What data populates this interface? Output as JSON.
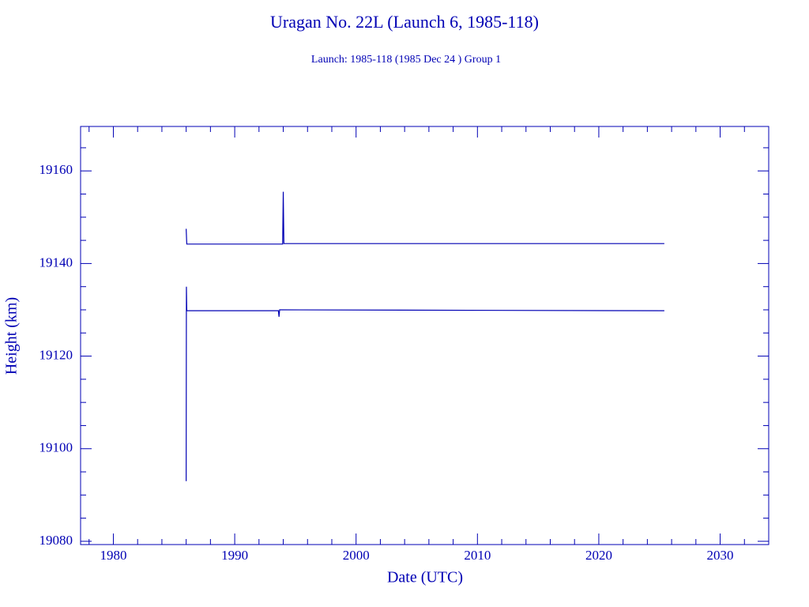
{
  "chart_data": {
    "type": "line",
    "title": "Uragan No. 22L (Launch 6, 1985-118)",
    "subtitle": "Launch: 1985-118  (1985 Dec 24 )  Group 1",
    "x_label": "Date (UTC)",
    "y_label": "Height (km)",
    "xlim": [
      1977.3,
      2034.0
    ],
    "ylim": [
      19079.3,
      19169.6
    ],
    "xticks": [
      1980,
      1990,
      2000,
      2010,
      2020,
      2030
    ],
    "yticks": [
      19080,
      19100,
      19120,
      19140,
      19160
    ],
    "xminorticks": [
      1978,
      1982,
      1984,
      1986,
      1988,
      1992,
      1994,
      1996,
      1998,
      2002,
      2004,
      2006,
      2008,
      2012,
      2014,
      2016,
      2018,
      2022,
      2024,
      2026,
      2028,
      2032
    ],
    "yminorticks": [
      19085,
      19090,
      19095,
      19105,
      19110,
      19115,
      19125,
      19130,
      19135,
      19145,
      19150,
      19155,
      19165
    ],
    "grid": false,
    "series": [
      {
        "color": "#0000b4",
        "x": [
          1986.0,
          1986.05,
          1993.95,
          1994.0,
          1994.05,
          2025.4
        ],
        "values": [
          19147.5,
          19144.2,
          19144.2,
          19155.5,
          19144.3,
          19144.3
        ]
      },
      {
        "color": "#0000b4",
        "x": [
          1986.0,
          1986.02,
          1986.05,
          1993.6,
          1993.65,
          1993.7,
          2025.4
        ],
        "values": [
          19093.0,
          19135.0,
          19129.8,
          19129.8,
          19128.5,
          19130.0,
          19129.8
        ]
      }
    ]
  }
}
